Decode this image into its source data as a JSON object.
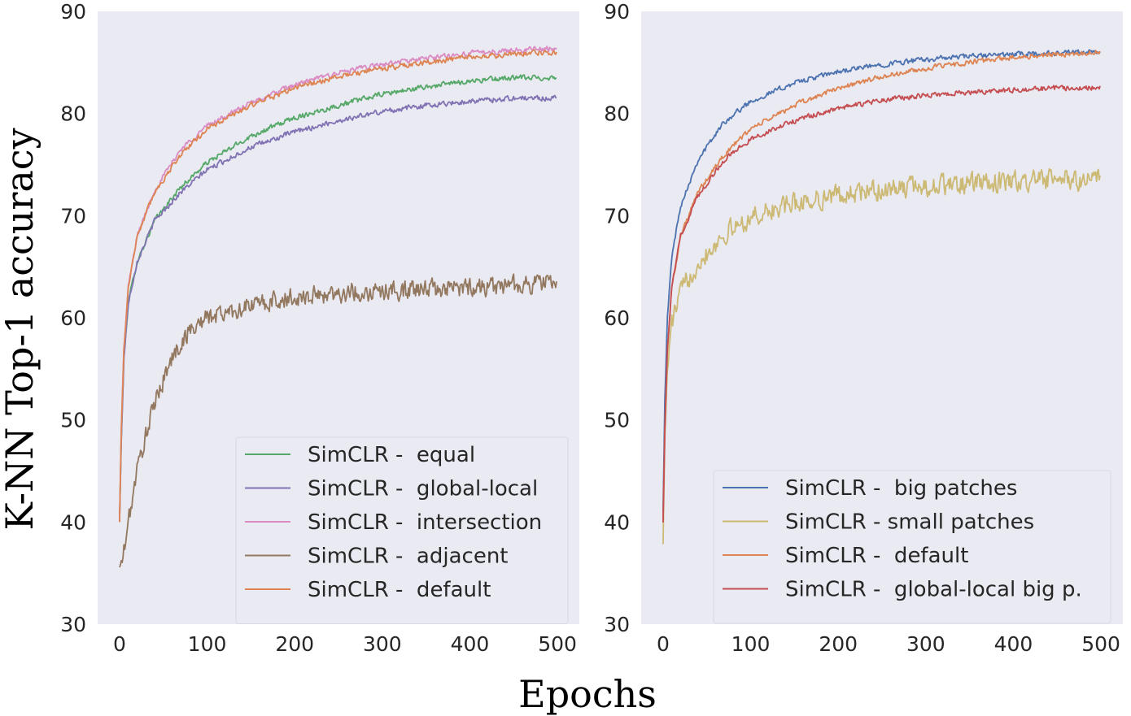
{
  "shared": {
    "xlabel": "Epochs",
    "ylabel": "K-NN Top-1 accuracy",
    "ylim": [
      30,
      90
    ],
    "xlim": [
      -25,
      525
    ],
    "xticks": [
      "0",
      "100",
      "200",
      "300",
      "400",
      "500"
    ],
    "yticks": [
      "30",
      "40",
      "50",
      "60",
      "70",
      "80",
      "90"
    ]
  },
  "chart_data": [
    {
      "type": "line",
      "title": "",
      "xlabel": "Epochs",
      "ylabel": "K-NN Top-1 accuracy",
      "xlim": [
        -25,
        525
      ],
      "ylim": [
        30,
        90
      ],
      "grid": false,
      "legend_position": "lower-right",
      "series": [
        {
          "name": "SimCLR -  equal",
          "color": "#55a868",
          "noise": 0.35,
          "x": [
            0,
            2,
            5,
            10,
            20,
            40,
            70,
            100,
            150,
            200,
            250,
            300,
            350,
            400,
            450,
            499
          ],
          "values": [
            40,
            48,
            56,
            61.5,
            65.5,
            69.5,
            72.8,
            75.2,
            77.8,
            79.6,
            80.8,
            81.9,
            82.6,
            83.2,
            83.5,
            83.5
          ]
        },
        {
          "name": "SimCLR -  global-local",
          "color": "#8172b3",
          "noise": 0.35,
          "x": [
            0,
            2,
            5,
            10,
            20,
            40,
            70,
            100,
            150,
            200,
            250,
            300,
            350,
            400,
            450,
            499
          ],
          "values": [
            40,
            48,
            56,
            61.5,
            65.5,
            69.5,
            72.3,
            74.5,
            76.7,
            78.2,
            79.3,
            80.2,
            80.8,
            81.2,
            81.5,
            81.5
          ]
        },
        {
          "name": "SimCLR -  intersection",
          "color": "#da8bc3",
          "noise": 0.35,
          "x": [
            0,
            2,
            5,
            10,
            20,
            40,
            70,
            100,
            150,
            200,
            250,
            300,
            350,
            400,
            450,
            499
          ],
          "values": [
            40,
            49,
            57,
            63,
            68,
            72.5,
            76.5,
            78.8,
            81,
            82.8,
            84,
            84.8,
            85.4,
            85.9,
            86.2,
            86.4
          ]
        },
        {
          "name": "SimCLR -  adjacent",
          "color": "#937860",
          "noise": 1.3,
          "x": [
            0,
            5,
            10,
            20,
            30,
            40,
            50,
            60,
            70,
            80,
            100,
            150,
            200,
            250,
            300,
            350,
            400,
            450,
            499
          ],
          "values": [
            35.5,
            37,
            40,
            45,
            48.5,
            51.5,
            54,
            56,
            57.5,
            58.8,
            60,
            61.2,
            62,
            62.4,
            62.6,
            62.8,
            63,
            63.2,
            63.5
          ]
        },
        {
          "name": "SimCLR -  default",
          "color": "#dd8452",
          "noise": 0.35,
          "x": [
            0,
            2,
            5,
            10,
            20,
            40,
            70,
            100,
            150,
            200,
            250,
            300,
            350,
            400,
            450,
            499
          ],
          "values": [
            40,
            49,
            57,
            63,
            68,
            72.3,
            76,
            78.5,
            80.8,
            82.5,
            83.6,
            84.4,
            85,
            85.5,
            85.8,
            86
          ]
        }
      ]
    },
    {
      "type": "line",
      "title": "",
      "xlabel": "Epochs",
      "ylabel": "",
      "xlim": [
        -25,
        525
      ],
      "ylim": [
        30,
        90
      ],
      "grid": false,
      "legend_position": "lower-right",
      "series": [
        {
          "name": "SimCLR -  big patches",
          "color": "#4c72b0",
          "noise": 0.35,
          "x": [
            0,
            2,
            5,
            10,
            20,
            40,
            70,
            100,
            150,
            200,
            250,
            300,
            350,
            400,
            450,
            499
          ],
          "values": [
            41,
            52,
            60,
            66,
            71,
            75.5,
            79.2,
            81.2,
            83,
            84.1,
            84.8,
            85.3,
            85.6,
            85.8,
            85.9,
            86
          ]
        },
        {
          "name": "SimCLR - small patches",
          "color": "#ccb974",
          "noise": 1.4,
          "x": [
            0,
            2,
            5,
            10,
            20,
            40,
            70,
            100,
            150,
            200,
            250,
            300,
            350,
            400,
            450,
            499
          ],
          "values": [
            38,
            48,
            55,
            59.5,
            62.5,
            65.5,
            68.2,
            69.8,
            71.2,
            72,
            72.5,
            72.9,
            73.1,
            73.3,
            73.5,
            73.5
          ]
        },
        {
          "name": "SimCLR -  default",
          "color": "#dd8452",
          "noise": 0.35,
          "x": [
            0,
            2,
            5,
            10,
            20,
            40,
            70,
            100,
            150,
            200,
            250,
            300,
            350,
            400,
            450,
            499
          ],
          "values": [
            40,
            49,
            57,
            63,
            68,
            72.3,
            76,
            78.5,
            80.8,
            82.5,
            83.6,
            84.4,
            85,
            85.5,
            85.8,
            86
          ]
        },
        {
          "name": "SimCLR -  global-local big p.",
          "color": "#c44e52",
          "noise": 0.35,
          "x": [
            0,
            2,
            5,
            10,
            20,
            40,
            70,
            100,
            150,
            200,
            250,
            300,
            350,
            400,
            450,
            499
          ],
          "values": [
            40,
            49,
            57,
            63,
            68,
            72,
            75.5,
            77.5,
            79.3,
            80.5,
            81.3,
            81.8,
            82.1,
            82.3,
            82.5,
            82.6
          ]
        }
      ]
    }
  ]
}
